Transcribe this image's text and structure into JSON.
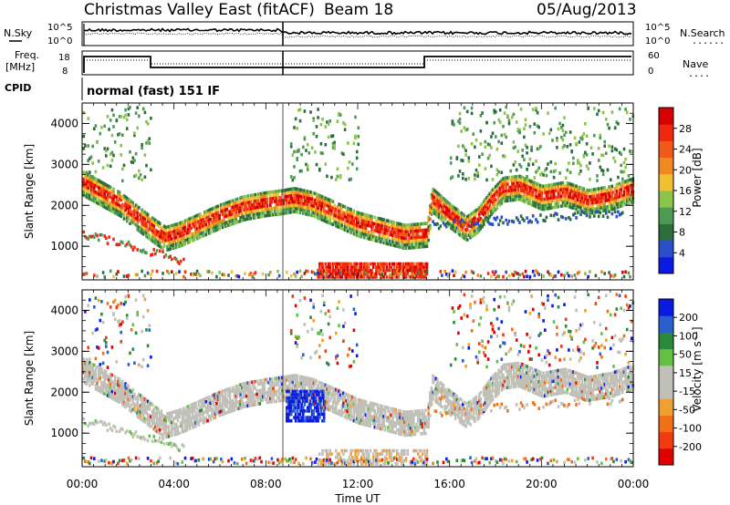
{
  "header": {
    "title": "Christmas Valley East (fitACF)",
    "beam": "Beam 18",
    "date": "05/Aug/2013"
  },
  "colors": {
    "power_scale": [
      "#0a1ae0",
      "#2a4fc8",
      "#2b6e3c",
      "#4d9a55",
      "#8cc34a",
      "#f0c030",
      "#f08a20",
      "#f05a18",
      "#f02810",
      "#d80000"
    ],
    "velocity_scale": [
      "#0a1ae0",
      "#2a5fd0",
      "#2a8a3a",
      "#62c043",
      "#c0c0b8",
      "#c0c0b8",
      "#f0a030",
      "#f07018",
      "#f03c10",
      "#e00000"
    ]
  },
  "labels": {
    "nsky": "N.Sky",
    "nsearch": "N.Search",
    "freq": "Freq.",
    "mhz": "[MHz]",
    "nave": "Nave",
    "cpid": "CPID",
    "cpid_value": "normal (fast) 151 IF",
    "nsky_top": "10^5",
    "nsky_bottom": "10^0",
    "nsearch_top": "10^5",
    "nsearch_bottom": "10^0",
    "freq_top": "18",
    "freq_bottom": "8",
    "nave_top": "60",
    "nave_bottom": "0",
    "dots": "......",
    "dots_short": "...."
  },
  "chart_data": [
    {
      "type": "heatmap",
      "name": "power",
      "ylabel": "Slant Range [km]",
      "xlabel": "",
      "colorbar_label": "Power [dB]",
      "colorbar_ticks": [
        "4",
        "8",
        "12",
        "16",
        "20",
        "24",
        "28"
      ],
      "x_ticks": [
        "00:00",
        "04:00",
        "08:00",
        "12:00",
        "16:00",
        "20:00",
        "00:00"
      ],
      "y_ticks": [
        "1000",
        "2000",
        "3000",
        "4000"
      ],
      "ylim": [
        180,
        4500
      ],
      "xlim_hours": [
        0,
        24
      ]
    },
    {
      "type": "heatmap",
      "name": "velocity",
      "ylabel": "Slant Range [km]",
      "xlabel": "Time UT",
      "colorbar_label": "Velocity [m s⁻¹]",
      "colorbar_ticks": [
        "200",
        "100",
        "50",
        "15",
        "-15",
        "-50",
        "-100",
        "-200"
      ],
      "x_ticks": [
        "00:00",
        "04:00",
        "08:00",
        "12:00",
        "16:00",
        "20:00",
        "00:00"
      ],
      "y_ticks": [
        "1000",
        "2000",
        "3000",
        "4000"
      ],
      "ylim": [
        180,
        4500
      ],
      "xlim_hours": [
        0,
        24
      ]
    }
  ]
}
